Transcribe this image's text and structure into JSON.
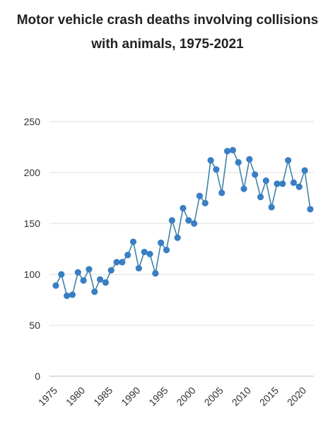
{
  "chart_data": {
    "type": "line",
    "title_lines": [
      "Motor vehicle crash deaths involving collisions",
      "with animals, 1975-2021"
    ],
    "xlabel": "",
    "ylabel": "",
    "ylim": [
      0,
      250
    ],
    "xlim": [
      1975,
      2021
    ],
    "y_ticks": [
      0,
      50,
      100,
      150,
      200,
      250
    ],
    "x_ticks": [
      1975,
      1980,
      1985,
      1990,
      1995,
      2000,
      2005,
      2010,
      2015,
      2020
    ],
    "grid": true,
    "legend": "none",
    "line_color": "#3f83a6",
    "point_color": "#3a7ec4",
    "x": [
      1975,
      1976,
      1977,
      1978,
      1979,
      1980,
      1981,
      1982,
      1983,
      1984,
      1985,
      1986,
      1987,
      1988,
      1989,
      1990,
      1991,
      1992,
      1993,
      1994,
      1995,
      1996,
      1997,
      1998,
      1999,
      2000,
      2001,
      2002,
      2003,
      2004,
      2005,
      2006,
      2007,
      2008,
      2009,
      2010,
      2011,
      2012,
      2013,
      2014,
      2015,
      2016,
      2017,
      2018,
      2019,
      2020,
      2021
    ],
    "values": [
      89,
      100,
      79,
      80,
      102,
      94,
      105,
      83,
      95,
      92,
      104,
      112,
      112,
      119,
      132,
      106,
      122,
      120,
      101,
      131,
      124,
      153,
      136,
      165,
      153,
      150,
      177,
      170,
      212,
      203,
      180,
      221,
      222,
      210,
      184,
      213,
      198,
      176,
      192,
      166,
      189,
      189,
      212,
      190,
      186,
      202,
      164
    ]
  }
}
